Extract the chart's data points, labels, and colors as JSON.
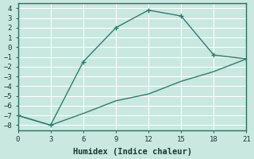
{
  "line1_x": [
    0,
    3,
    6,
    9,
    12,
    15,
    18,
    21
  ],
  "line1_y": [
    -7,
    -8,
    -1.5,
    2,
    3.8,
    3.2,
    -0.8,
    -1.2
  ],
  "line2_x": [
    0,
    3,
    6,
    9,
    12,
    15,
    18,
    21
  ],
  "line2_y": [
    -7,
    -8,
    -6.8,
    -5.5,
    -4.8,
    -3.5,
    -2.5,
    -1.2
  ],
  "line_color": "#2e7d6e",
  "xlabel": "Humidex (Indice chaleur)",
  "xlim": [
    0,
    21
  ],
  "ylim": [
    -8.5,
    4.5
  ],
  "xticks": [
    0,
    3,
    6,
    9,
    12,
    15,
    18,
    21
  ],
  "yticks": [
    -8,
    -7,
    -6,
    -5,
    -4,
    -3,
    -2,
    -1,
    0,
    1,
    2,
    3,
    4
  ],
  "bg_color": "#c8e8e0",
  "grid_color": "#b0d8d0",
  "tick_fontsize": 6.5,
  "xlabel_fontsize": 7.5
}
